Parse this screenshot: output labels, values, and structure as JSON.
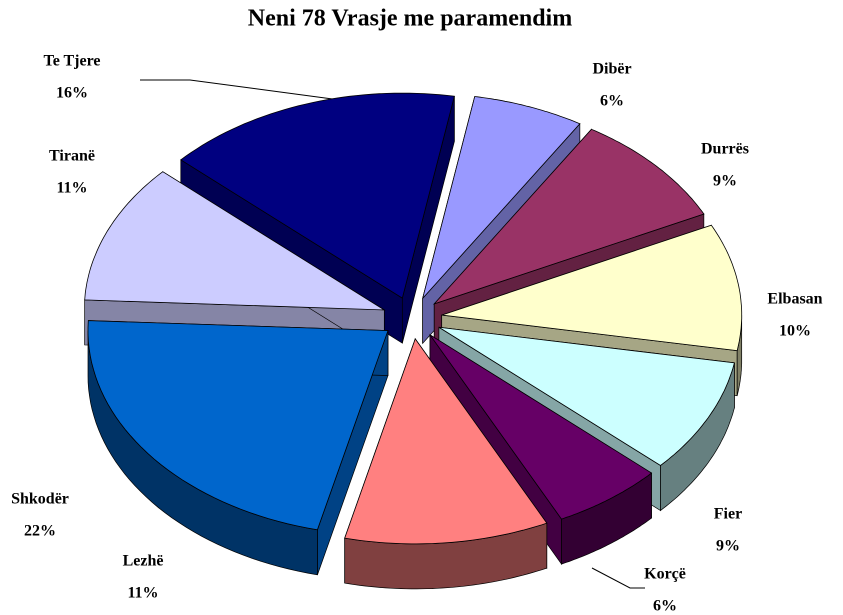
{
  "chart_data": {
    "type": "pie",
    "title": "Neni 78 Vrasje me paramendim",
    "categories": [
      "Dibër",
      "Durrës",
      "Elbasan",
      "Fier",
      "Korçë",
      "Lezhë",
      "Shkodër",
      "Tiranë",
      "Te Tjere"
    ],
    "values": [
      6,
      9,
      10,
      9,
      6,
      11,
      22,
      11,
      16
    ],
    "value_labels": [
      "6%",
      "9%",
      "10%",
      "9%",
      "6%",
      "11%",
      "22%",
      "11%",
      "16%"
    ],
    "colors": [
      "#9999ff",
      "#993366",
      "#ffffcc",
      "#ccffff",
      "#660066",
      "#ff8080",
      "#0066cc",
      "#ccccff",
      "#000080"
    ]
  }
}
